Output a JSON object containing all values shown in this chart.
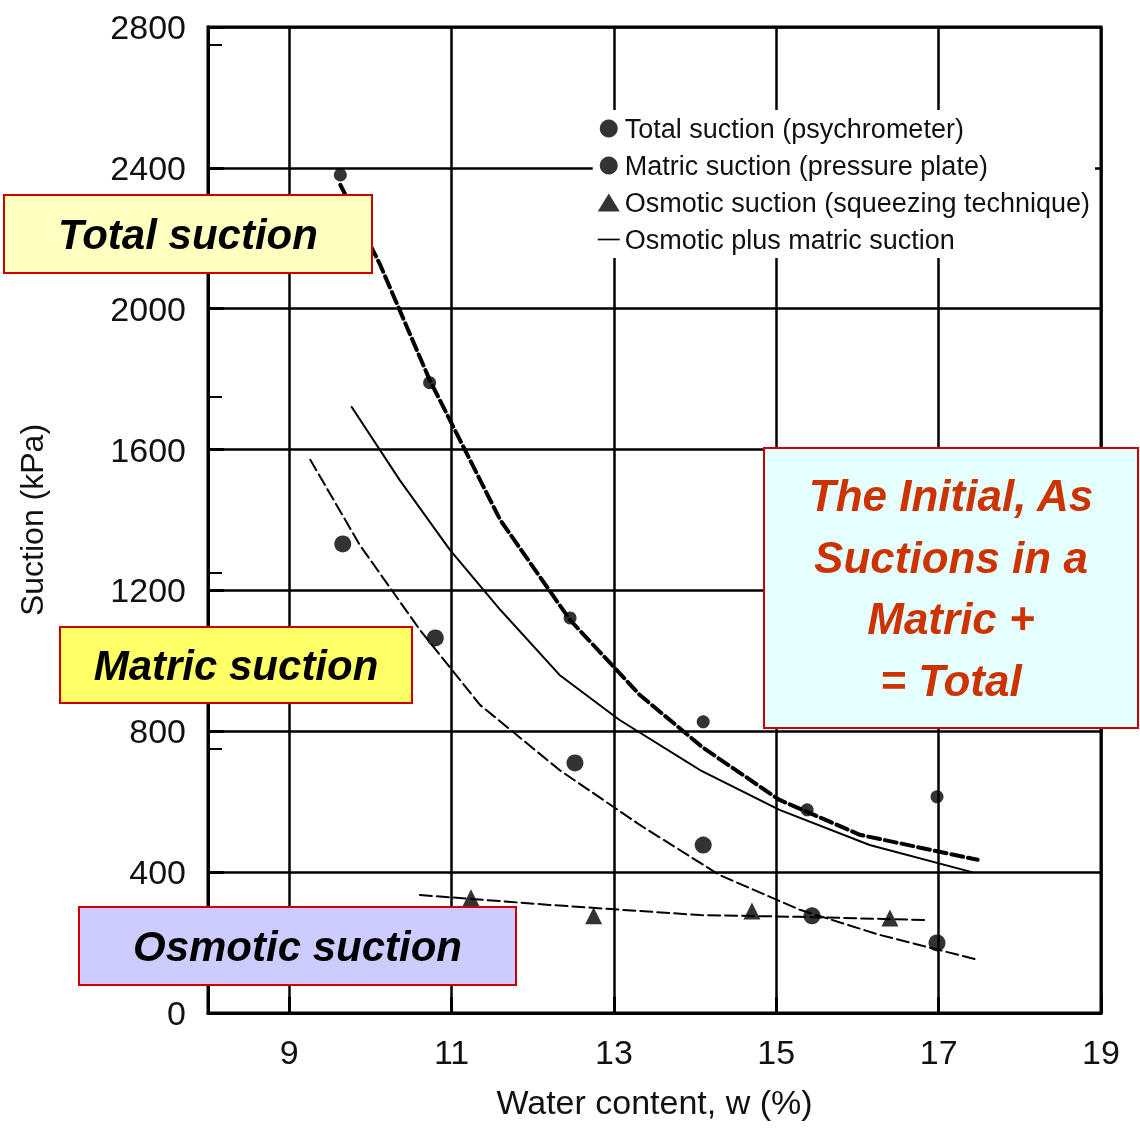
{
  "chart_data": {
    "type": "scatter",
    "xlabel": "Water content, w (%)",
    "ylabel": "Suction (kPa)",
    "xlim": [
      8,
      19
    ],
    "xticks": [
      9,
      11,
      13,
      15,
      17,
      19
    ],
    "ylim": [
      0,
      2800
    ],
    "yticks": [
      0,
      400,
      800,
      1200,
      1600,
      2000,
      2400,
      2800
    ],
    "grid": true,
    "legend": "top right",
    "series": [
      {
        "name": "Total suction (psychrometer)",
        "marker": "circle",
        "color": "#000000",
        "x": [
          9.63,
          10.73,
          12.46,
          14.1,
          15.38,
          16.98
        ],
        "values": [
          2380,
          1790,
          1122,
          827,
          577,
          614
        ]
      },
      {
        "type": "line",
        "marker": "none",
        "line_style": "dashed",
        "color": "#000000",
        "x": [
          9.63,
          10.12,
          10.73,
          11.6,
          12.46,
          13.32,
          14.1,
          15.04,
          16.03,
          17.48
        ],
        "values": [
          2352,
          2125,
          1798,
          1400,
          1116,
          903,
          753,
          605,
          506,
          435
        ]
      },
      {
        "name": "Matric suction (pressure plate)",
        "marker": "circle",
        "color": "#000000",
        "x": [
          9.66,
          10.8,
          12.52,
          14.1,
          15.44,
          16.98
        ],
        "values": [
          1332,
          1065,
          710,
          477,
          276,
          199
        ]
      },
      {
        "type": "line",
        "marker": "none",
        "line_style": "dashed",
        "color": "#000000",
        "x": [
          9.26,
          9.87,
          10.61,
          11.35,
          12.33,
          13.32,
          14.3,
          15.29,
          16.27,
          17.5
        ],
        "values": [
          1571,
          1329,
          1088,
          875,
          690,
          534,
          392,
          293,
          222,
          150
        ]
      },
      {
        "name": "Osmotic suction (squeezing technique)",
        "marker": "triangle",
        "color": "#000000",
        "x": [
          11.24,
          12.75,
          14.7,
          16.4
        ],
        "values": [
          327,
          276,
          290,
          270
        ]
      },
      {
        "type": "line",
        "marker": "none",
        "line_style": "dashed",
        "color": "#000000",
        "x": [
          10.61,
          12.21,
          14.06,
          15.29,
          16.83
        ],
        "values": [
          335,
          307,
          278,
          273,
          264
        ]
      },
      {
        "name": "Osmotic plus matric suction",
        "type": "line",
        "marker": "none",
        "line_style": "solid",
        "color": "#000000",
        "x": [
          9.77,
          10.36,
          10.98,
          11.6,
          12.33,
          13.07,
          14.06,
          15.04,
          16.15,
          17.41
        ],
        "values": [
          1721,
          1514,
          1315,
          1145,
          960,
          832,
          690,
          577,
          477,
          400
        ]
      }
    ],
    "annotations": [
      "Total suction",
      "Matric suction",
      "Osmotic suction",
      "The Initial, As\nSuctions in a\nMatric +\n= Total"
    ]
  }
}
